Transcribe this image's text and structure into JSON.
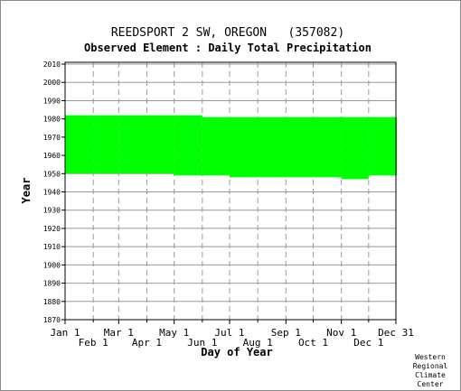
{
  "chart_data": {
    "type": "heatmap",
    "title": "REEDSPORT 2 SW, OREGON   (357082)",
    "subtitle": "Observed Element : Daily Total Precipitation",
    "xlabel": "Day of Year",
    "ylabel": "Year",
    "x_tick_labels_row1": [
      "Jan 1",
      "Mar 1",
      "May 1",
      "Jul 1",
      "Sep 1",
      "Nov 1",
      "Dec 31"
    ],
    "x_tick_days_row1": [
      1,
      60,
      121,
      182,
      244,
      305,
      365
    ],
    "x_tick_labels_row2": [
      "Feb 1",
      "Apr 1",
      "Jun 1",
      "Aug 1",
      "Oct 1",
      "Dec 1"
    ],
    "x_tick_days_row2": [
      32,
      91,
      152,
      213,
      274,
      335
    ],
    "xlim": [
      1,
      365
    ],
    "y_ticks": [
      1870,
      1880,
      1890,
      1900,
      1910,
      1920,
      1930,
      1940,
      1950,
      1960,
      1970,
      1980,
      1990,
      2000,
      2010
    ],
    "ylim": [
      1870,
      2011
    ],
    "grid": true,
    "colors": {
      "data": "#00ff00",
      "grid": "#999999",
      "axis": "#000000",
      "background": "#ffffff"
    },
    "data_coverage": [
      {
        "day_start": 1,
        "day_end": 31,
        "year_start": 1950,
        "year_end": 1982
      },
      {
        "day_start": 32,
        "day_end": 59,
        "year_start": 1950,
        "year_end": 1982
      },
      {
        "day_start": 60,
        "day_end": 120,
        "year_start": 1950,
        "year_end": 1982
      },
      {
        "day_start": 121,
        "day_end": 151,
        "year_start": 1949,
        "year_end": 1982
      },
      {
        "day_start": 152,
        "day_end": 181,
        "year_start": 1949,
        "year_end": 1981
      },
      {
        "day_start": 182,
        "day_end": 304,
        "year_start": 1948,
        "year_end": 1981
      },
      {
        "day_start": 305,
        "day_end": 334,
        "year_start": 1947,
        "year_end": 1981
      },
      {
        "day_start": 335,
        "day_end": 365,
        "year_start": 1949,
        "year_end": 1981
      }
    ]
  },
  "credit": [
    "Western",
    "Regional",
    "Climate",
    "Center"
  ]
}
